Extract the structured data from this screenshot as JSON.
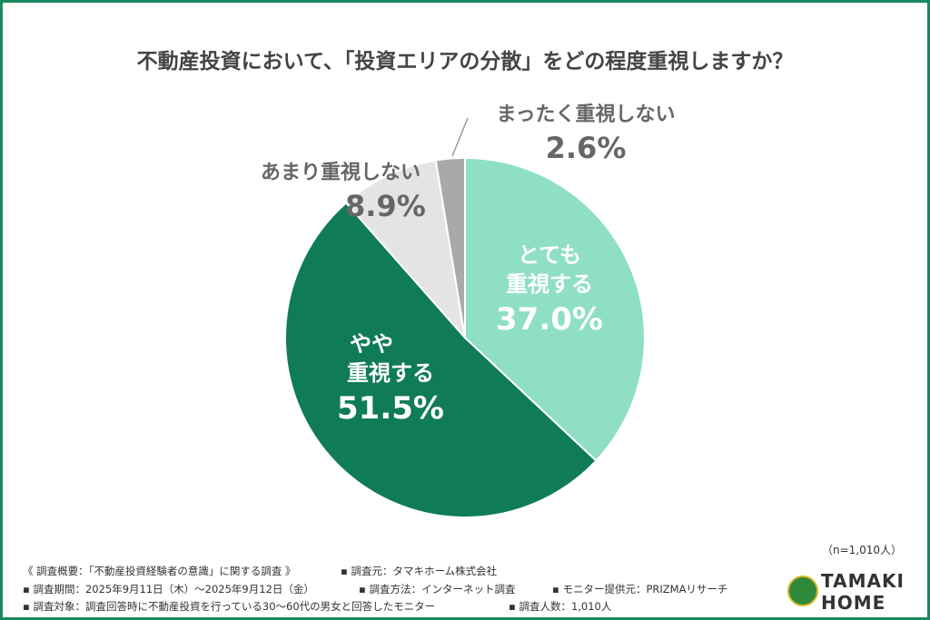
{
  "chart_data": {
    "type": "pie",
    "title": "不動産投資において、「投資エリアの分散」をどの程度重視しますか？",
    "start": "top",
    "direction": "clockwise",
    "slices": [
      {
        "label_line1": "とても",
        "label_line2": "重視する",
        "value": 37.0,
        "display": "37.0%",
        "color": "#8fdfc5"
      },
      {
        "label_line1": "やや",
        "label_line2": "重視する",
        "value": 51.5,
        "display": "51.5%",
        "color": "#0f7b59"
      },
      {
        "label_line1": "あまり重視しない",
        "label_line2": "",
        "value": 8.9,
        "display": "8.9%",
        "color": "#e4e4e4"
      },
      {
        "label_line1": "まったく重視しない",
        "label_line2": "",
        "value": 2.6,
        "display": "2.6%",
        "color": "#a9a9a9"
      }
    ]
  },
  "sample": "（n=1,010人）",
  "footer": {
    "line1a": "《 調査概要：「不動産投資経験者の意識」に関する調査 》",
    "line1b": "▪ 調査元：タマキホーム株式会社",
    "line2a": "▪ 調査期間：2025年9月11日（木）～2025年9月12日（金）",
    "line2b": "▪ 調査方法：インターネット調査",
    "line2c": "▪ モニター提供元：PRIZMAリサーチ",
    "line3a": "▪ 調査対象：調査回答時に不動産投資を行っている30～60代の男女と回答したモニター",
    "line3b": "▪ 調査人数：1,010人"
  },
  "logo": {
    "line1": "TAMAKI",
    "line2": "HOME"
  }
}
